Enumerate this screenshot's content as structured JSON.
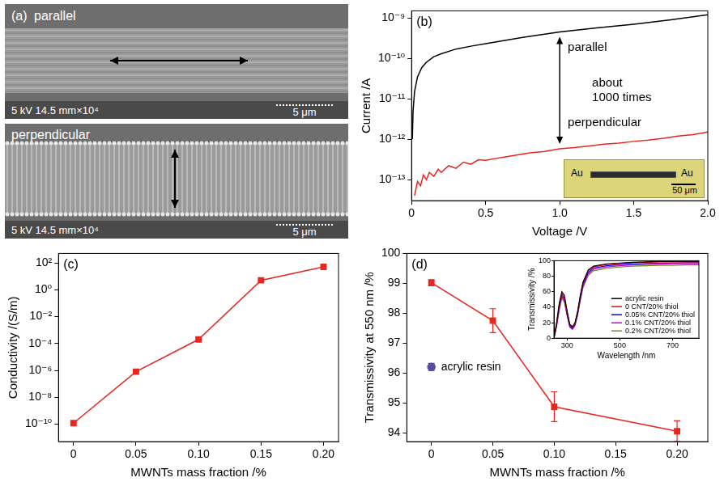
{
  "micrograph": {
    "panel": "(a)",
    "images": [
      {
        "label": "parallel",
        "info": "5 kV  14.5 mm×10⁴",
        "scale_bar": "5 μm"
      },
      {
        "label": "perpendicular",
        "info": "5 kV  14.5 mm×10⁴",
        "scale_bar": "5 μm"
      }
    ]
  },
  "chart_data": [
    {
      "panel": "(b)",
      "type": "line",
      "x_label": "Voltage /V",
      "y_label": "Current /A",
      "log": "y",
      "grid": false,
      "xlim": [
        0,
        2
      ],
      "xticks": [
        0,
        0.5,
        {
          "value": 1,
          "label": "1.0"
        },
        1.5,
        {
          "value": 2,
          "label": "2.0"
        }
      ],
      "ylim": [
        3e-14,
        1.5e-09
      ],
      "yticks": [
        {
          "value": 1e-13,
          "label": "10⁻¹³"
        },
        {
          "value": 1e-12,
          "label": "10⁻¹²"
        },
        {
          "value": 1e-11,
          "label": "10⁻¹¹"
        },
        {
          "value": 1e-10,
          "label": "10⁻¹⁰"
        },
        {
          "value": 1e-09,
          "label": "10⁻⁹"
        }
      ],
      "series": [
        {
          "name": "parallel",
          "color": "#000000",
          "line_style": "solid",
          "x": [
            0.005,
            0.01,
            0.02,
            0.04,
            0.07,
            0.1,
            0.15,
            0.2,
            0.3,
            0.4,
            0.5,
            0.75,
            1.0,
            1.25,
            1.5,
            1.75,
            2.0
          ],
          "values": [
            1e-12,
            5e-12,
            1.5e-11,
            3.5e-11,
            6e-11,
            8e-11,
            1.1e-10,
            1.3e-10,
            1.7e-10,
            2e-10,
            2.3e-10,
            3.3e-10,
            4.5e-10,
            5.7e-10,
            7e-10,
            9e-10,
            1.2e-09
          ]
        },
        {
          "name": "perpendicular",
          "color": "#e8261f",
          "line_style": "solid",
          "x": [
            0.02,
            0.04,
            0.06,
            0.08,
            0.1,
            0.12,
            0.15,
            0.18,
            0.2,
            0.25,
            0.3,
            0.35,
            0.4,
            0.45,
            0.5,
            0.6,
            0.7,
            0.8,
            0.9,
            1.0,
            1.1,
            1.2,
            1.3,
            1.4,
            1.5,
            1.6,
            1.7,
            1.8,
            1.9,
            2.0
          ],
          "values": [
            4e-14,
            9e-14,
            7e-14,
            1.3e-13,
            1e-13,
            1.5e-13,
            1.2e-13,
            1.8e-13,
            1.5e-13,
            2.2e-13,
            1.9e-13,
            2.7e-13,
            2.4e-13,
            3.1e-13,
            3e-13,
            3.5e-13,
            4e-13,
            4.6e-13,
            5e-13,
            5.8e-13,
            6.2e-13,
            6.8e-13,
            7.5e-13,
            8e-13,
            8.8e-13,
            9.5e-13,
            1.05e-12,
            1.2e-12,
            1.3e-12,
            1.5e-12
          ]
        }
      ],
      "annotation": [
        "about",
        "1000 times"
      ],
      "inset": {
        "labels": [
          "Au",
          "Au"
        ],
        "scale_bar": "50 μm"
      }
    },
    {
      "panel": "(c)",
      "type": "line",
      "x_label": "MWNTs mass fraction /%",
      "y_label": "Conductivity /(S/m)",
      "log": "y",
      "grid": false,
      "xlim": [
        -0.012,
        0.212
      ],
      "xticks": [
        0,
        0.05,
        {
          "value": 0.1,
          "label": "0.10"
        },
        0.15,
        {
          "value": 0.2,
          "label": "0.20"
        }
      ],
      "ylim": [
        5e-12,
        500
      ],
      "yticks": [
        {
          "value": 1e-10,
          "label": "10⁻¹⁰"
        },
        {
          "value": 1e-08,
          "label": "10⁻⁸"
        },
        {
          "value": 1e-06,
          "label": "10⁻⁶"
        },
        {
          "value": 0.0001,
          "label": "10⁻⁴"
        },
        {
          "value": 0.01,
          "label": "10⁻²"
        },
        {
          "value": 1,
          "label": "10⁰"
        },
        {
          "value": 100,
          "label": "10²"
        }
      ],
      "series": [
        {
          "color": "#e8261f",
          "marker": "square",
          "line_style": "solid",
          "x": [
            0,
            0.05,
            0.1,
            0.15,
            0.2
          ],
          "values": [
            1.2e-10,
            8e-07,
            0.0002,
            5,
            50
          ]
        }
      ]
    },
    {
      "panel": "(d)",
      "type": "line",
      "x_label": "MWNTs mass fraction /%",
      "y_label": "Transmissivity at 550 nm /%",
      "grid": false,
      "xlim": [
        -0.02,
        0.225
      ],
      "xticks": [
        0,
        0.05,
        {
          "value": 0.1,
          "label": "0.10"
        },
        0.15,
        {
          "value": 0.2,
          "label": "0.20"
        }
      ],
      "ylim": [
        93.7,
        100
      ],
      "yticks": [
        94,
        95,
        96,
        97,
        98,
        99,
        100
      ],
      "series": [
        {
          "color": "#e8261f",
          "marker": "square",
          "line_style": "solid",
          "x": [
            0,
            0.05,
            0.1,
            0.2
          ],
          "values": [
            99.02,
            97.75,
            94.87,
            94.05
          ],
          "errors": [
            0.1,
            0.4,
            0.5,
            0.35
          ]
        },
        {
          "name": "acrylic resin",
          "color": "#5b4a9f",
          "marker": "circle",
          "line_style": "none",
          "x": [
            0
          ],
          "values": [
            96.2
          ],
          "errors": [
            0.12
          ]
        }
      ],
      "inset": {
        "type": "line",
        "x_label": "Wavelength /nm",
        "y_label": "Transmissivity /%",
        "grid": false,
        "legend": "lower right",
        "x": [
          250,
          260,
          270,
          280,
          290,
          300,
          310,
          320,
          330,
          340,
          350,
          360,
          380,
          400,
          450,
          500,
          550,
          600,
          650,
          700,
          750,
          800
        ],
        "xlim": [
          250,
          800
        ],
        "xticks": [
          300,
          500,
          700
        ],
        "ylim": [
          0,
          100
        ],
        "yticks": [
          0,
          20,
          40,
          60,
          80,
          100
        ],
        "series": [
          {
            "name": "acrylic resin",
            "color": "#000000",
            "line_style": "solid",
            "values": [
              0,
              20,
              45,
              60,
              55,
              35,
              18,
              15,
              20,
              35,
              55,
              72,
              88,
              93,
              96,
              97,
              98,
              98.5,
              99,
              99,
              99,
              99
            ]
          },
          {
            "name": "0 CNT/20% thiol",
            "color": "#ff0000",
            "line_style": "solid",
            "values": [
              0,
              18,
              42,
              58,
              52,
              33,
              17,
              14,
              19,
              34,
              54,
              71,
              87,
              92,
              95,
              96.5,
              97.5,
              98,
              98.5,
              98.5,
              98.5,
              98.5
            ]
          },
          {
            "name": "0.05% CNT/20% thiol",
            "color": "#0000ff",
            "line_style": "solid",
            "values": [
              0,
              17,
              40,
              56,
              50,
              31,
              16,
              13,
              18,
              32,
              52,
              69,
              85,
              90.5,
              93.5,
              95,
              96,
              96.5,
              97,
              97,
              97.5,
              97.5
            ]
          },
          {
            "name": "0.1% CNT/20% thiol",
            "color": "#d000d0",
            "line_style": "solid",
            "values": [
              0,
              16,
              38,
              54,
              48,
              30,
              15,
              12,
              17,
              31,
              50,
              67,
              83,
              89,
              92,
              93.5,
              94.5,
              95,
              95.5,
              96,
              96,
              96
            ]
          },
          {
            "name": "0.2% CNT/20% thiol",
            "color": "#6b8e23",
            "line_style": "solid",
            "values": [
              0,
              15,
              36,
              52,
              46,
              29,
              14,
              11,
              16,
              30,
              49,
              65,
              81,
              87,
              90,
              92,
              93,
              93.5,
              94,
              94,
              94.5,
              94.5
            ]
          }
        ]
      }
    }
  ]
}
